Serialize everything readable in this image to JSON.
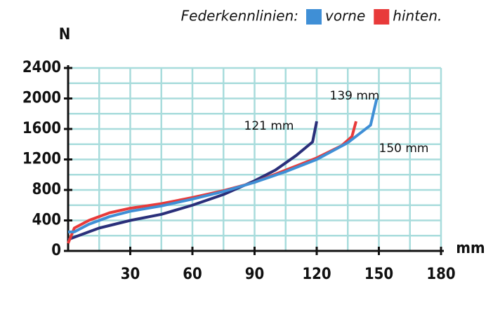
{
  "chart_data": {
    "type": "line",
    "legend_title": "Federkennlinien:",
    "ylabel": "N",
    "xlabel": "mm",
    "xlim": [
      0,
      180
    ],
    "xticks": [
      30,
      60,
      90,
      120,
      150,
      180
    ],
    "minor_xticks": [
      15,
      45,
      75,
      105,
      135,
      165
    ],
    "ylim": [
      0,
      2400
    ],
    "yticks": [
      0,
      400,
      800,
      1200,
      1600,
      2000,
      2400
    ],
    "minor_yticks": [
      200,
      600,
      1000,
      1400,
      1800,
      2200
    ],
    "grid": true,
    "grid_color": "#a8dcdc",
    "legend": "top-right",
    "series": [
      {
        "color": "#2a2f7a",
        "x": [
          0,
          5,
          15,
          30,
          45,
          60,
          75,
          90,
          100,
          110,
          118,
          120
        ],
        "values": [
          150,
          200,
          300,
          400,
          480,
          600,
          740,
          920,
          1060,
          1250,
          1430,
          1700
        ]
      },
      {
        "name": "hinten.",
        "color": "#e83a3a",
        "x": [
          0,
          3,
          10,
          20,
          30,
          45,
          60,
          75,
          90,
          105,
          120,
          132,
          137,
          139
        ],
        "values": [
          100,
          300,
          400,
          500,
          560,
          620,
          700,
          790,
          900,
          1060,
          1220,
          1380,
          1500,
          1700
        ]
      },
      {
        "name": "vorne",
        "color": "#3f8fd6",
        "x": [
          0,
          3,
          10,
          20,
          30,
          45,
          60,
          75,
          90,
          105,
          120,
          135,
          146,
          149
        ],
        "values": [
          250,
          250,
          350,
          450,
          520,
          590,
          680,
          780,
          900,
          1040,
          1200,
          1420,
          1650,
          2000
        ]
      }
    ],
    "annotations": [
      "121 mm",
      "139 mm",
      "150 mm"
    ]
  }
}
